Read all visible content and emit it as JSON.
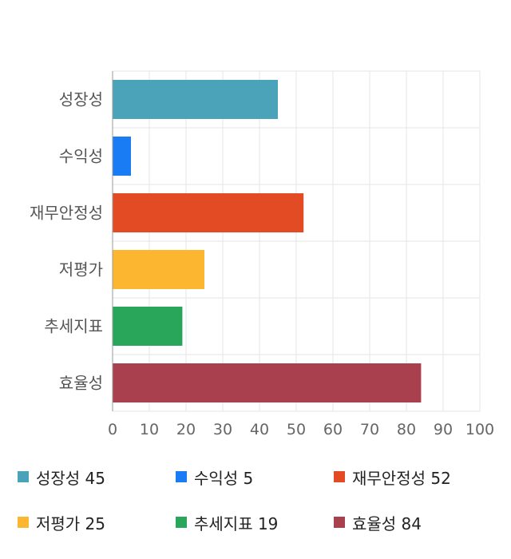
{
  "chart_data": {
    "type": "bar",
    "orientation": "horizontal",
    "categories": [
      "성장성",
      "수익성",
      "재무안정성",
      "저평가",
      "추세지표",
      "효율성"
    ],
    "values": [
      45,
      5,
      52,
      25,
      19,
      84
    ],
    "colors": [
      "#4aa3b9",
      "#1a7cf5",
      "#e24b23",
      "#fdb630",
      "#2aa65a",
      "#a9404e"
    ],
    "xlim": [
      0,
      100
    ],
    "xticks": [
      "0",
      "10",
      "20",
      "30",
      "40",
      "50",
      "60",
      "70",
      "80",
      "90",
      "100"
    ],
    "grid": true,
    "legend_position": "bottom"
  },
  "legend": [
    {
      "label": "성장성 45",
      "color": "#4aa3b9"
    },
    {
      "label": "수익성 5",
      "color": "#1a7cf5"
    },
    {
      "label": "재무안정성 52",
      "color": "#e24b23"
    },
    {
      "label": "저평가 25",
      "color": "#fdb630"
    },
    {
      "label": "추세지표 19",
      "color": "#2aa65a"
    },
    {
      "label": "효율성 84",
      "color": "#a9404e"
    }
  ]
}
